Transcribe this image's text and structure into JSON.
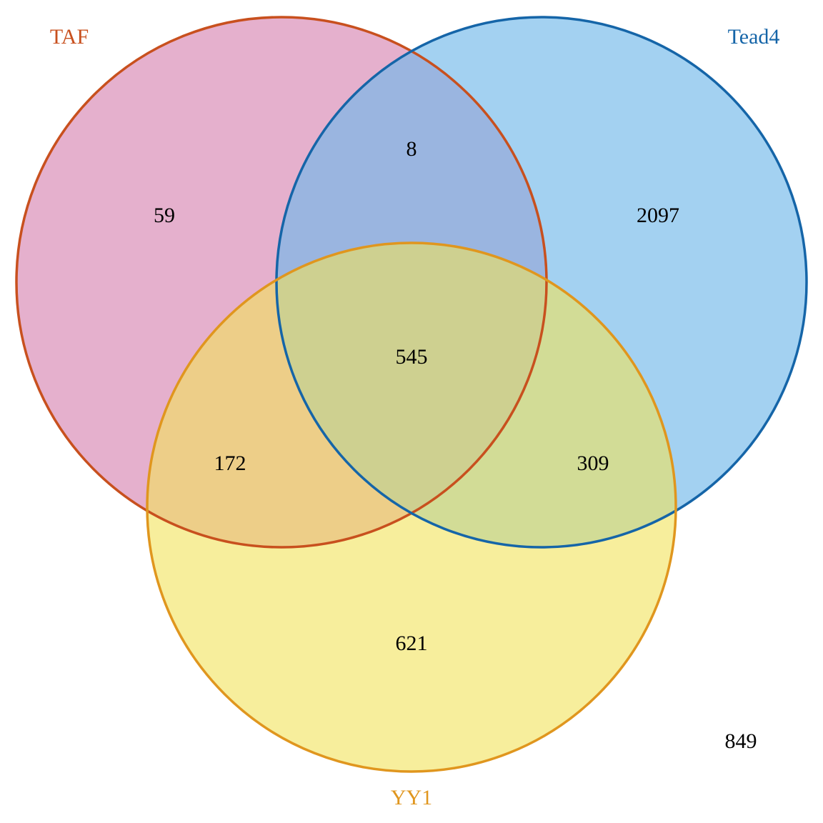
{
  "sets": [
    {
      "key": "taf",
      "label": "TAF",
      "stroke": "#c8501e",
      "fill": "#d98ab5"
    },
    {
      "key": "tead4",
      "label": "Tead4",
      "stroke": "#1565a8",
      "fill": "#72b8ea"
    },
    {
      "key": "yy1",
      "label": "YY1",
      "stroke": "#e0961e",
      "fill": "#f2e35a"
    }
  ],
  "regions": {
    "taf_only": "59",
    "taf_tead4": "8",
    "tead4_only": "2097",
    "taf_tead4_yy1": "545",
    "taf_yy1": "172",
    "tead4_yy1": "309",
    "yy1_only": "621",
    "outside": "849"
  }
}
